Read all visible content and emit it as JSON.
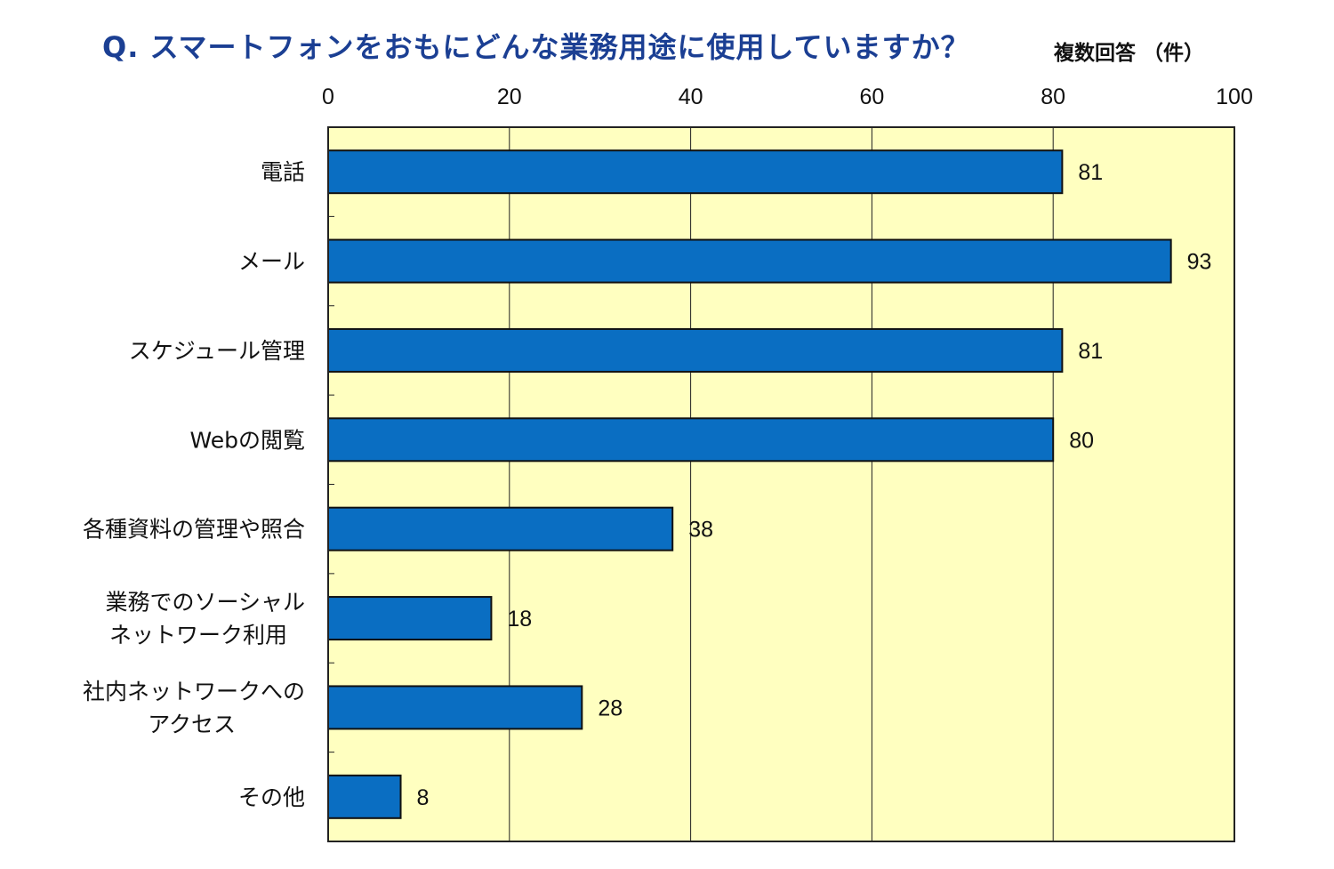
{
  "title": "Q. スマートフォンをおもにどんな業務用途に使用していますか？",
  "note": "複数回答 （件）",
  "colors": {
    "plot_bg": "#ffffc0",
    "bar": "#0a6ec2",
    "bar_border": "#111111",
    "title": "#1b3f93"
  },
  "chart_data": {
    "type": "bar",
    "orientation": "horizontal",
    "categories": [
      [
        "電話"
      ],
      [
        "メール"
      ],
      [
        "スケジュール管理"
      ],
      [
        "Webの閲覧"
      ],
      [
        "各種資料の管理や照合"
      ],
      [
        "業務でのソーシャル",
        "ネットワーク利用"
      ],
      [
        "社内ネットワークへの",
        "アクセス"
      ],
      [
        "その他"
      ]
    ],
    "values": [
      81,
      93,
      81,
      80,
      38,
      18,
      28,
      8
    ],
    "xlim": [
      0,
      100
    ],
    "xticks": [
      0,
      20,
      40,
      60,
      80,
      100
    ],
    "axis_position": "top",
    "grid": true,
    "data_labels": true
  }
}
